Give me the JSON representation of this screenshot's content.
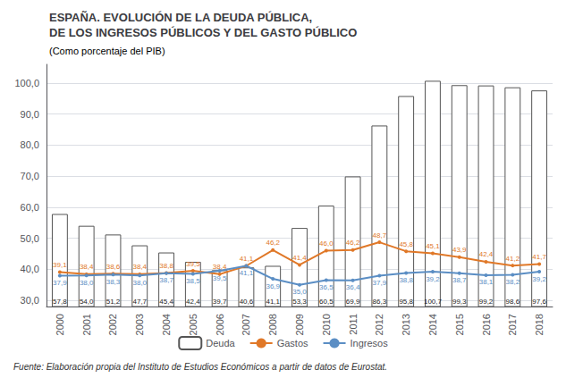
{
  "chart_data": {
    "type": "bar",
    "title": "ESPAÑA. EVOLUCIÓN DE LA DEUDA PÚBLICA,\nDE LOS INGRESOS PÚBLICOS Y DEL GASTO PÚBLICO",
    "subtitle": "(Como porcentaje del PIB)",
    "annotations": [
      "Fuente: Elaboración propia del Instituto de Estudios Económicos a partir de datos de Eurostat."
    ],
    "categories": [
      "2000",
      "2001",
      "2002",
      "2003",
      "2004",
      "2005",
      "2006",
      "2007",
      "2008",
      "2009",
      "2010",
      "2011",
      "2012",
      "2013",
      "2014",
      "2015",
      "2016",
      "2017",
      "2018"
    ],
    "series": [
      {
        "name": "Deuda",
        "type": "bar",
        "color": "#ffffff",
        "values": [
          57.8,
          54.0,
          51.2,
          47.7,
          45.4,
          42.4,
          39.7,
          40.6,
          41.1,
          53.3,
          60.5,
          69.9,
          86.3,
          95.8,
          100.7,
          99.3,
          99.2,
          98.6,
          97.6
        ],
        "value_labels": [
          "57,8",
          "54,0",
          "51,2",
          "47,7",
          "45,4",
          "42,4",
          "39,7",
          "40,6",
          "41,1",
          "53,3",
          "60,5",
          "69,9",
          "86,3",
          "95,8",
          "100,7",
          "99,3",
          "99,2",
          "98,6",
          "97,6"
        ]
      },
      {
        "name": "Gastos",
        "type": "line",
        "color": "#e07828",
        "values": [
          39.1,
          38.4,
          38.6,
          38.4,
          38.8,
          39.5,
          38.4,
          41.1,
          46.2,
          41.4,
          46.0,
          46.2,
          48.7,
          45.8,
          45.1,
          43.9,
          42.4,
          41.2,
          41.7
        ],
        "value_labels": [
          "39,1",
          "38,4",
          "38,6",
          "38,4",
          "38,8",
          "39,5",
          "38,4",
          "41,1",
          "46,2",
          "41,4",
          "46,0",
          "46,2",
          "48,7",
          "45,8",
          "45,1",
          "43,9",
          "42,4",
          "41,2",
          "41,7"
        ]
      },
      {
        "name": "Ingresos",
        "type": "line",
        "color": "#5b8ec4",
        "values": [
          37.9,
          38.0,
          38.3,
          38.0,
          38.7,
          38.5,
          39.5,
          41.1,
          36.9,
          35.0,
          36.5,
          36.4,
          37.9,
          38.8,
          39.2,
          38.7,
          38.1,
          38.2,
          39.2
        ],
        "value_labels": [
          "37,9",
          "38,0",
          "38,3",
          "38,0",
          "38,7",
          "38,5",
          "39,5",
          "41,1",
          "36,9",
          "35,0",
          "36,5",
          "36,4",
          "37,9",
          "38,8",
          "39,2",
          "38,7",
          "38,1",
          "38,2",
          "39,2"
        ]
      }
    ],
    "ylim": [
      28.0,
      106.0
    ],
    "yticks": [
      {
        "value": 30.0,
        "label": "30,0"
      },
      {
        "value": 40.0,
        "label": "40,0"
      },
      {
        "value": 50.0,
        "label": "50,0"
      },
      {
        "value": 60.0,
        "label": "60,0"
      },
      {
        "value": 70.0,
        "label": "70,0"
      },
      {
        "value": 80.0,
        "label": "80,0"
      },
      {
        "value": 90.0,
        "label": "90,0"
      },
      {
        "value": 100.0,
        "label": "100,0"
      }
    ],
    "grid": true,
    "legend": "bottom",
    "data_labels": true
  }
}
